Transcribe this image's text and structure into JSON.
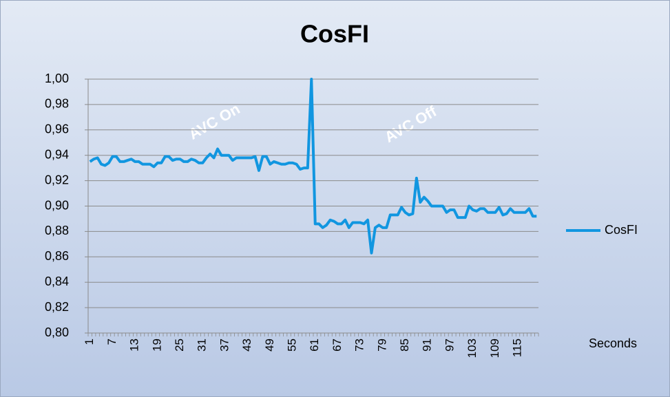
{
  "chart_data": {
    "type": "line",
    "title": "CosFI",
    "x_label": "Seconds",
    "annotations": [
      "AVC On",
      "AVC Off"
    ],
    "categories": [
      1,
      null,
      null,
      null,
      null,
      null,
      7,
      null,
      null,
      null,
      null,
      null,
      13,
      null,
      null,
      null,
      null,
      null,
      19,
      null,
      null,
      null,
      null,
      null,
      25,
      null,
      null,
      null,
      null,
      null,
      31,
      null,
      null,
      null,
      null,
      null,
      37,
      null,
      null,
      null,
      null,
      null,
      43,
      null,
      null,
      null,
      null,
      null,
      49,
      null,
      null,
      null,
      null,
      null,
      55,
      null,
      null,
      null,
      null,
      null,
      61,
      null,
      null,
      null,
      null,
      null,
      67,
      null,
      null,
      null,
      null,
      null,
      73,
      null,
      null,
      null,
      null,
      null,
      79,
      null,
      null,
      null,
      null,
      null,
      85,
      null,
      null,
      null,
      null,
      null,
      91,
      null,
      null,
      null,
      null,
      null,
      97,
      null,
      null,
      null,
      null,
      null,
      103,
      null,
      null,
      null,
      null,
      null,
      109,
      null,
      null,
      null,
      null,
      null,
      115,
      null,
      null,
      null,
      null,
      null
    ],
    "series": [
      {
        "name": "CosFI",
        "color": "#1196e0",
        "values": [
          0.935,
          0.937,
          0.938,
          0.933,
          0.932,
          0.934,
          0.939,
          0.939,
          0.935,
          0.935,
          0.936,
          0.937,
          0.935,
          0.935,
          0.933,
          0.933,
          0.933,
          0.931,
          0.934,
          0.934,
          0.939,
          0.939,
          0.936,
          0.937,
          0.937,
          0.935,
          0.935,
          0.937,
          0.936,
          0.934,
          0.934,
          0.938,
          0.941,
          0.938,
          0.945,
          0.94,
          0.94,
          0.94,
          0.936,
          0.938,
          0.938,
          0.938,
          0.938,
          0.938,
          0.939,
          0.928,
          0.939,
          0.939,
          0.933,
          0.935,
          0.934,
          0.933,
          0.933,
          0.934,
          0.934,
          0.933,
          0.929,
          0.93,
          0.93,
          1.0,
          0.886,
          0.886,
          0.883,
          0.885,
          0.889,
          0.888,
          0.886,
          0.886,
          0.889,
          0.883,
          0.887,
          0.887,
          0.887,
          0.886,
          0.889,
          0.863,
          0.883,
          0.885,
          0.883,
          0.883,
          0.893,
          0.893,
          0.893,
          0.899,
          0.895,
          0.893,
          0.894,
          0.922,
          0.903,
          0.907,
          0.904,
          0.9,
          0.9,
          0.9,
          0.9,
          0.895,
          0.897,
          0.897,
          0.891,
          0.891,
          0.891,
          0.9,
          0.897,
          0.896,
          0.898,
          0.898,
          0.895,
          0.895,
          0.895,
          0.899,
          0.893,
          0.894,
          0.898,
          0.895,
          0.895,
          0.895,
          0.895,
          0.898,
          0.892,
          0.892
        ]
      }
    ],
    "ylim": [
      0.8,
      1.0
    ],
    "yticks": [
      {
        "value": 0.8,
        "label": "0,80"
      },
      {
        "value": 0.82,
        "label": "0,82"
      },
      {
        "value": 0.84,
        "label": "0,84"
      },
      {
        "value": 0.86,
        "label": "0,86"
      },
      {
        "value": 0.88,
        "label": "0,88"
      },
      {
        "value": 0.9,
        "label": "0,90"
      },
      {
        "value": 0.92,
        "label": "0,92"
      },
      {
        "value": 0.94,
        "label": "0,94"
      },
      {
        "value": 0.96,
        "label": "0,96"
      },
      {
        "value": 0.98,
        "label": "0,98"
      },
      {
        "value": 1.0,
        "label": "1,00"
      }
    ],
    "grid": true,
    "legend": "right"
  }
}
